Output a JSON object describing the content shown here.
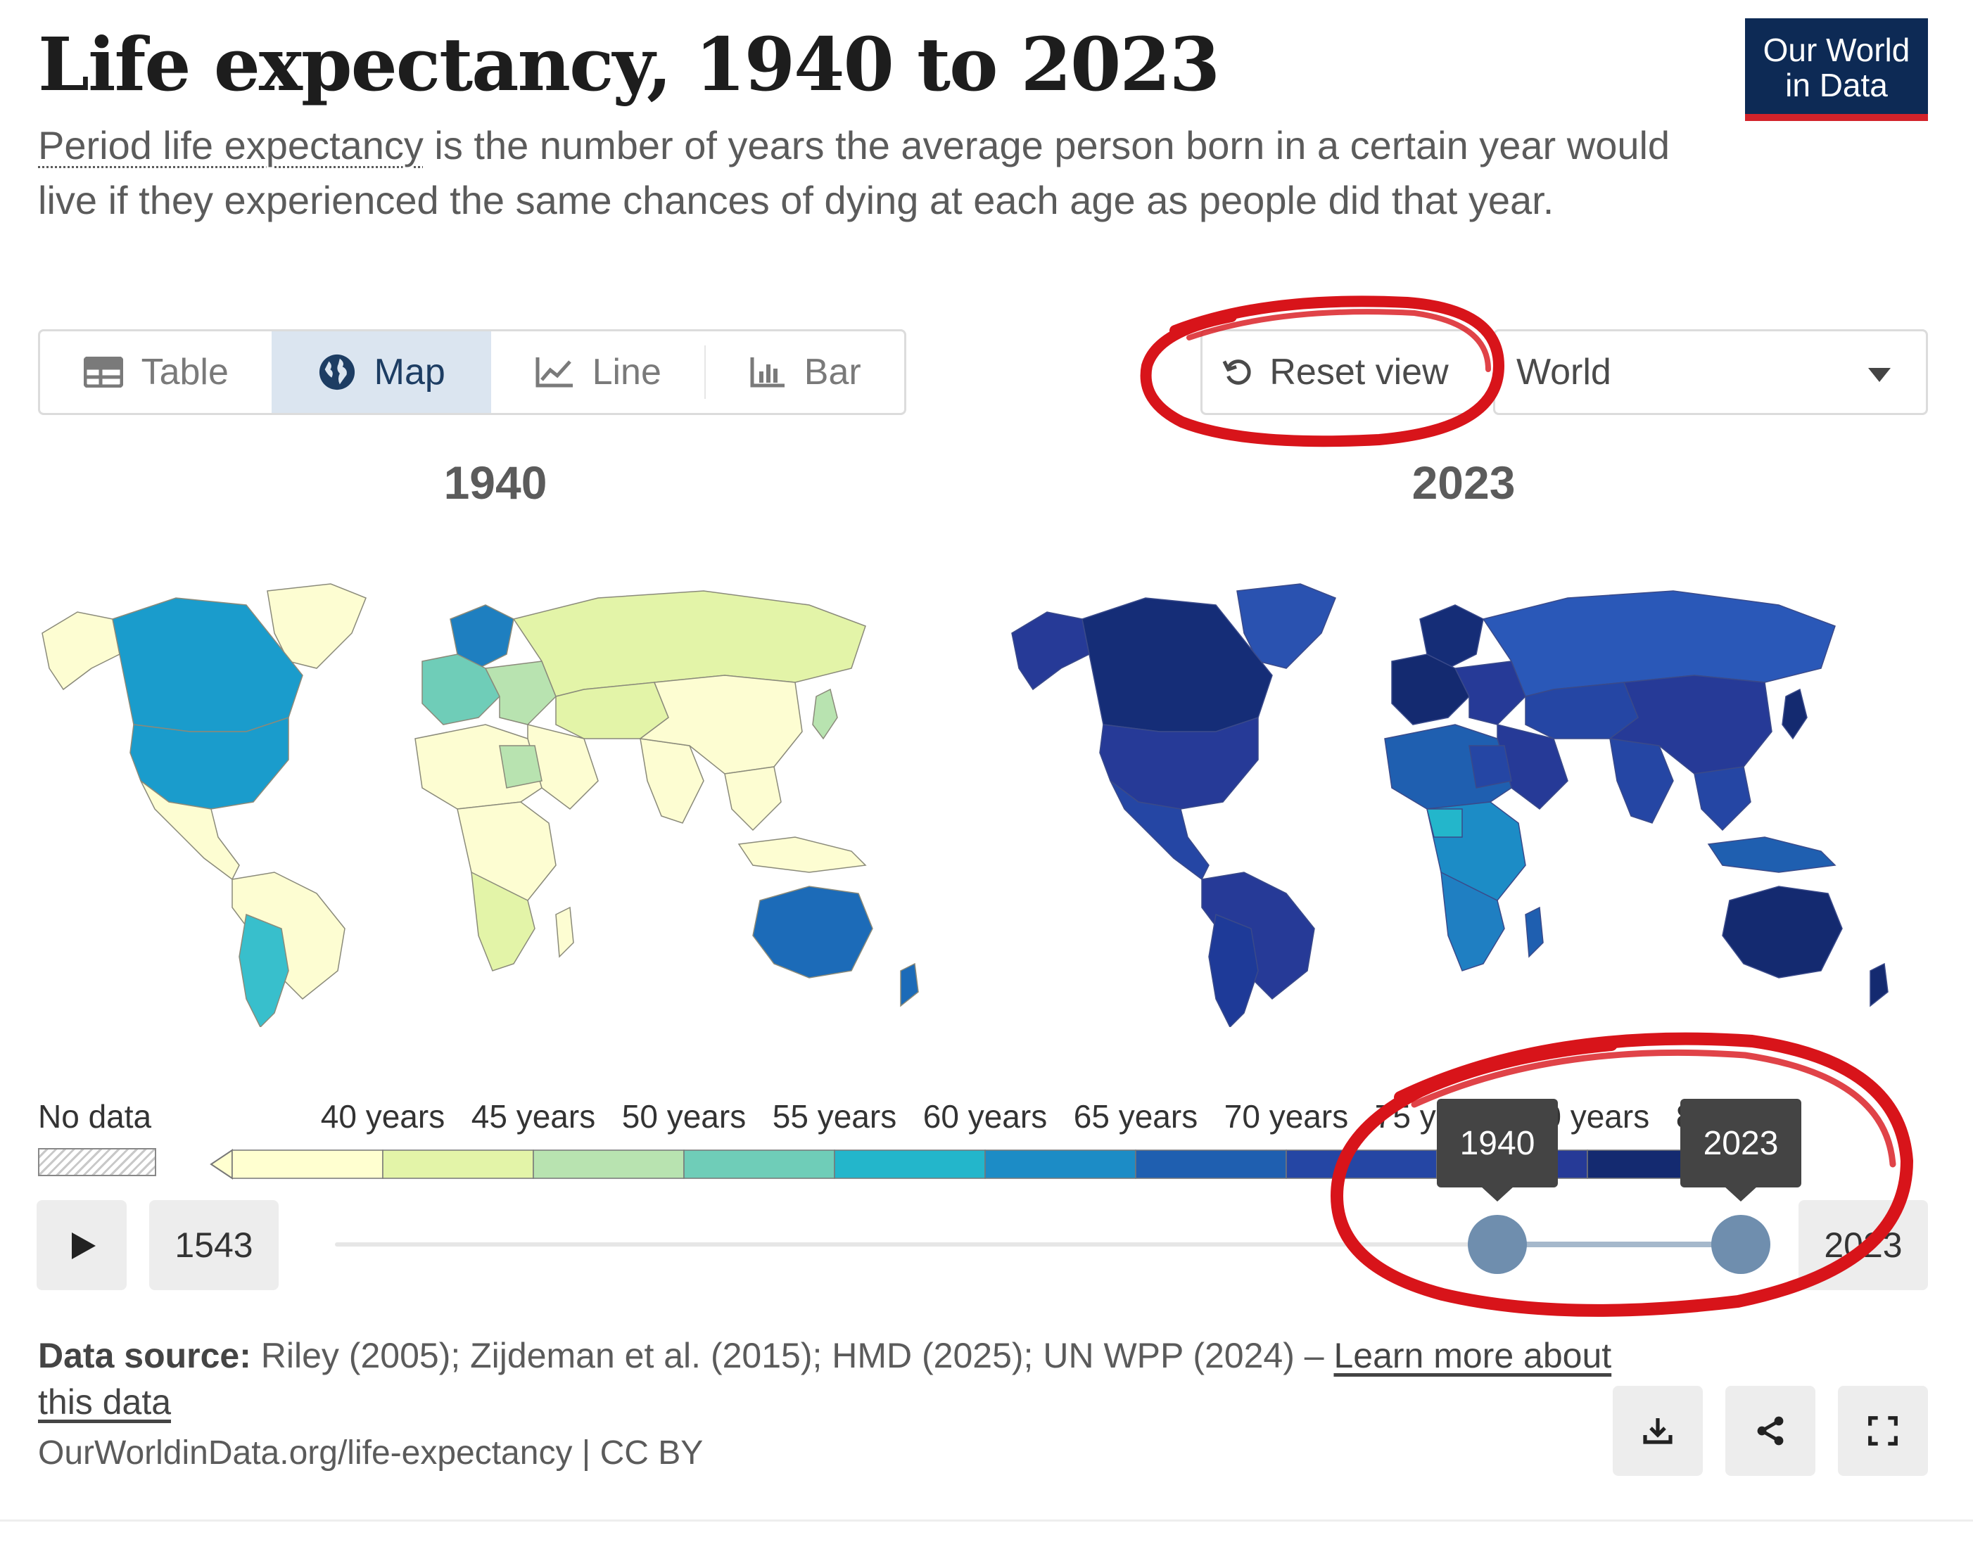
{
  "header": {
    "title": "Life expectancy, 1940 to 2023",
    "subtitle_link": "Period life expectancy",
    "subtitle_rest": " is the number of years the average person born in a certain year would live if they experienced the same chances of dying at each age as people did that year.",
    "logo_line1": "Our World",
    "logo_line2": "in Data",
    "logo_colors": {
      "background": "#0d2a55",
      "accent": "#d2232a"
    }
  },
  "toolbar": {
    "tabs": [
      {
        "label": "Table",
        "icon": "table-icon",
        "active": false
      },
      {
        "label": "Map",
        "icon": "globe-icon",
        "active": true
      },
      {
        "label": "Line",
        "icon": "line-chart-icon",
        "active": false
      },
      {
        "label": "Bar",
        "icon": "bar-chart-icon",
        "active": false
      }
    ],
    "reset_label": "Reset view",
    "reset_icon": "reset-icon",
    "region_selected": "World",
    "region_icon": "caret-down-icon"
  },
  "maps": {
    "left_year": "1940",
    "right_year": "2023"
  },
  "legend": {
    "no_data_label": "No data",
    "bins": [
      "40 years",
      "45 years",
      "50 years",
      "55 years",
      "60 years",
      "65 years",
      "70 years",
      "75 years",
      "80 years",
      "85 years"
    ],
    "colors": [
      "#ffffd0",
      "#e3f4a8",
      "#b8e3b0",
      "#6fcdb8",
      "#23b6cb",
      "#1c8cc6",
      "#1f5fb0",
      "#2546a4",
      "#263a97",
      "#142a70"
    ]
  },
  "timeline": {
    "min_year": "1543",
    "max_year": "2023",
    "start_selected": "1940",
    "end_selected": "2023",
    "play_icon": "play-icon"
  },
  "footer": {
    "source_label": "Data source:",
    "source_text": " Riley (2005); Zijdeman et al. (2015); HMD (2025); UN WPP (2024) – ",
    "learn_more": "Learn more about this data",
    "url": "OurWorldinData.org/life-expectancy",
    "license": " | CC BY",
    "actions": [
      {
        "icon": "download-icon"
      },
      {
        "icon": "share-icon"
      },
      {
        "icon": "fullscreen-icon"
      }
    ]
  },
  "annotation_color": "#d8141a"
}
